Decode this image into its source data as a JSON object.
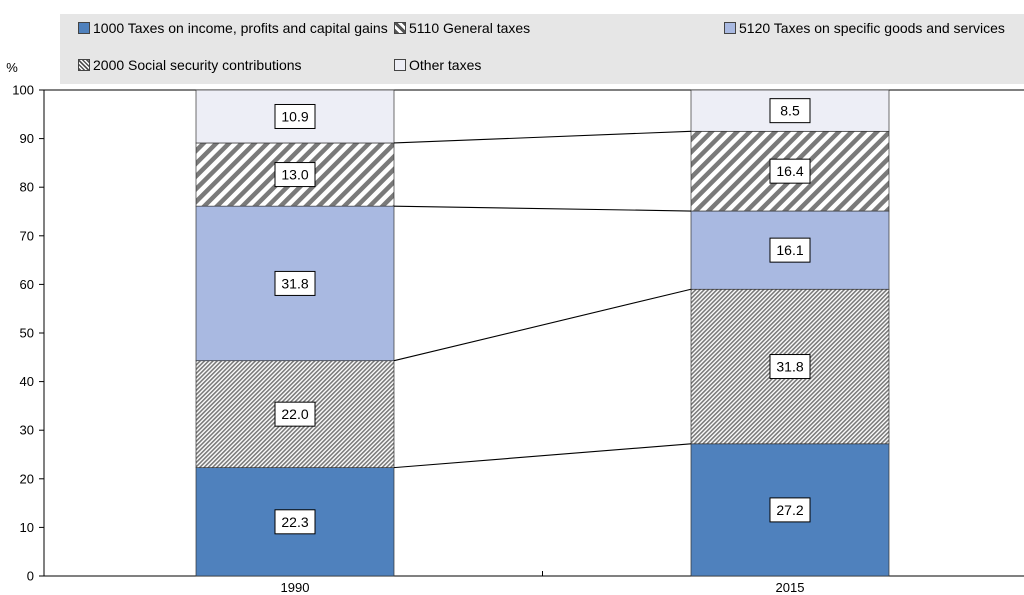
{
  "chart_data": {
    "type": "bar",
    "stacked": true,
    "unit_label": "%",
    "ylim": [
      0,
      100
    ],
    "yticks": [
      0,
      10,
      20,
      30,
      40,
      50,
      60,
      70,
      80,
      90,
      100
    ],
    "categories": [
      "1990",
      "2015"
    ],
    "series": [
      {
        "name": "1000 Taxes on income, profits and capital gains",
        "values": [
          22.3,
          27.2
        ],
        "color": "#4f81bd",
        "pattern": "solid"
      },
      {
        "name": "2000 Social security contributions",
        "values": [
          22.0,
          31.8
        ],
        "color": "#8c8c8c",
        "pattern": "hatch-dense"
      },
      {
        "name": "5120 Taxes on specific goods and services",
        "values": [
          31.8,
          16.1
        ],
        "color": "#a9b9e1",
        "pattern": "solid"
      },
      {
        "name": "5110 General taxes",
        "values": [
          13.0,
          16.4
        ],
        "color": "#8c8c8c",
        "pattern": "hatch-wide"
      },
      {
        "name": "Other taxes",
        "values": [
          10.9,
          8.5
        ],
        "color": "#edeef6",
        "pattern": "solid"
      }
    ],
    "legend_order": [
      "1000 Taxes on income, profits and capital gains",
      "5110 General taxes",
      "5120 Taxes on specific goods and services",
      "2000 Social security contributions",
      "Other taxes"
    ],
    "legend_position": "top",
    "grid": false
  }
}
